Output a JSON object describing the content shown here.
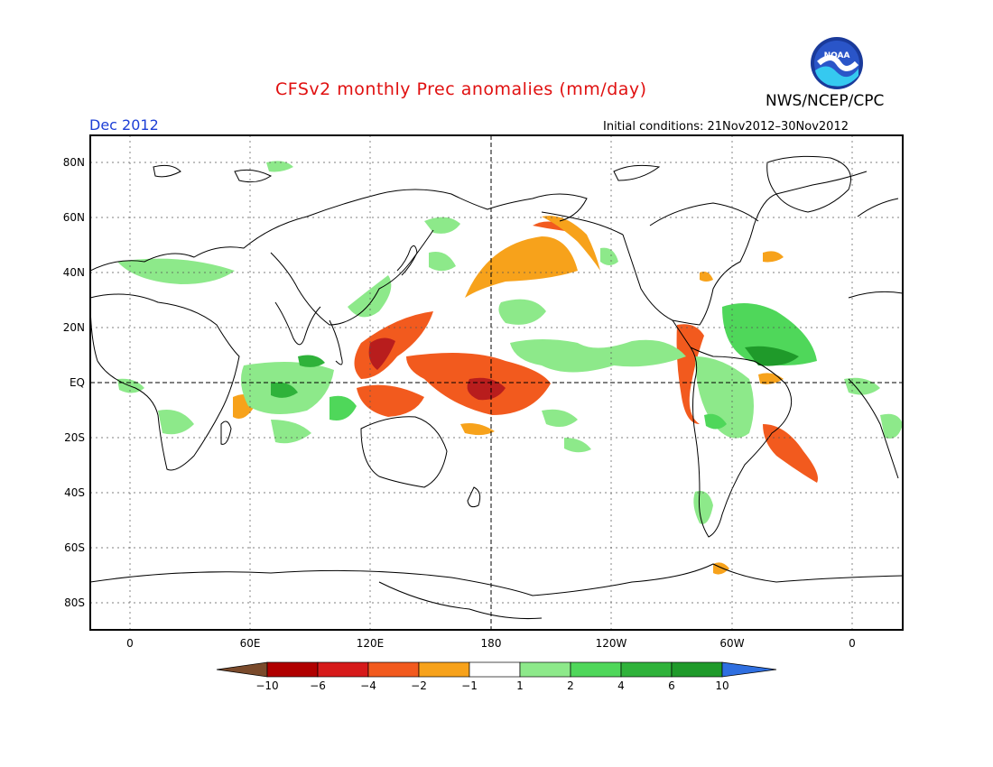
{
  "header": {
    "title": "CFSv2 monthly Prec anomalies (mm/day)",
    "agency": "NWS/NCEP/CPC",
    "logo_text": "NOAA",
    "month": "Dec 2012",
    "initial_conditions": "Initial conditions: 21Nov2012–30Nov2012"
  },
  "axes": {
    "lat_labels": [
      "80N",
      "60N",
      "40N",
      "20N",
      "EQ",
      "20S",
      "40S",
      "60S",
      "80S"
    ],
    "lon_labels": [
      "0",
      "60E",
      "120E",
      "180",
      "120W",
      "60W",
      "0"
    ]
  },
  "colorbar": {
    "labels": [
      "−10",
      "−6",
      "−4",
      "−2",
      "−1",
      "1",
      "2",
      "4",
      "6",
      "10"
    ],
    "colors": [
      "#7a4a2b",
      "#b00000",
      "#d61a1a",
      "#f25a1e",
      "#f7a21b",
      "#ffffff",
      "#8de98a",
      "#4fd75a",
      "#2fb23a",
      "#1f9a2a",
      "#2f6fe0"
    ]
  },
  "colors": {
    "dry_strong": "#b81d1d",
    "dry_moderate": "#f25a1e",
    "dry_weak": "#f7a21b",
    "wet_weak": "#8de98a",
    "wet_moderate": "#4fd75a",
    "wet_strong": "#1f9a2a",
    "coast": "#000000",
    "grid": "#555555"
  }
}
